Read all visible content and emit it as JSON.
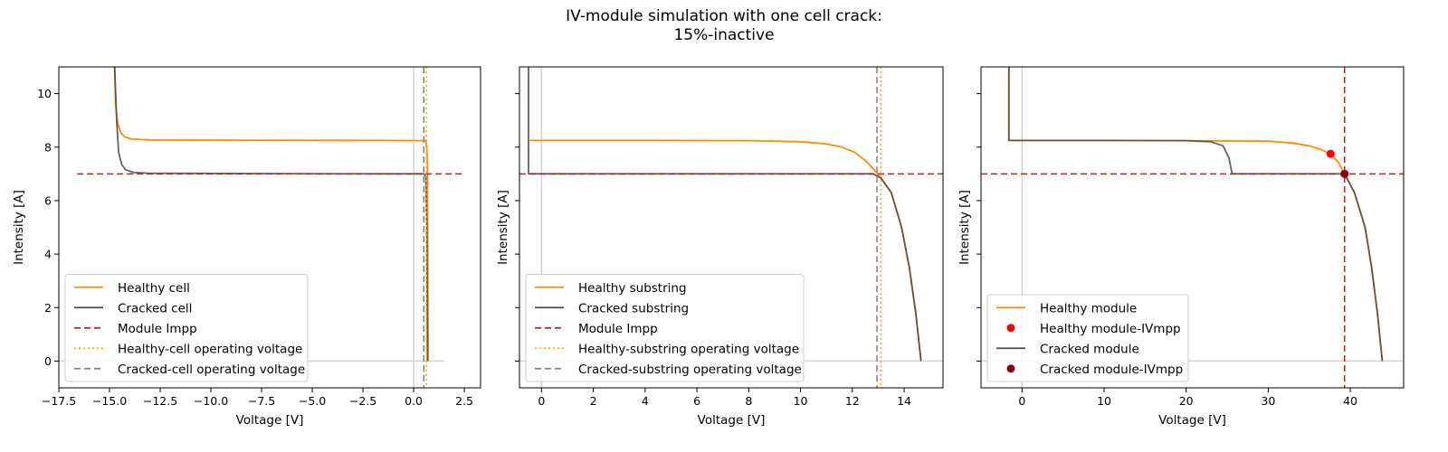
{
  "title_line1": "IV-module simulation with one cell crack:",
  "title_line2": "15%-inactive",
  "colors": {
    "healthy": "#ff8c00",
    "cracked": "#4a4a4a",
    "impp": "#b22222",
    "healthy_vop": "#ffa500",
    "cracked_vop": "#808080",
    "zero_line": "#d3d3d3",
    "healthy_mpp": "#ff0000",
    "cracked_mpp": "#8b0000",
    "mixed": "#6b5634"
  },
  "chart_data": [
    {
      "type": "line",
      "xlabel": "Voltage [V]",
      "ylabel": "Intensity [A]",
      "xlim": [
        -17.5,
        3.3
      ],
      "ylim": [
        -1,
        11
      ],
      "xticks": [
        -17.5,
        -15.0,
        -12.5,
        -10.0,
        -7.5,
        -5.0,
        -2.5,
        0.0,
        2.5
      ],
      "xtick_labels": [
        "−17.5",
        "−15.0",
        "−12.5",
        "−10.0",
        "−7.5",
        "−5.0",
        "−2.5",
        "0.0",
        "2.5"
      ],
      "yticks": [
        0,
        2,
        4,
        6,
        8,
        10
      ],
      "ytick_labels": [
        "0",
        "2",
        "4",
        "6",
        "8",
        "10"
      ],
      "series": [
        {
          "name": "Healthy cell",
          "style": "solid",
          "color": "#ff8c00",
          "points": [
            [
              -14.75,
              11.1
            ],
            [
              -14.7,
              9.6
            ],
            [
              -14.6,
              8.9
            ],
            [
              -14.45,
              8.55
            ],
            [
              -14.25,
              8.38
            ],
            [
              -13.9,
              8.3
            ],
            [
              -13.0,
              8.27
            ],
            [
              -8.0,
              8.26
            ],
            [
              -2.0,
              8.25
            ],
            [
              0.55,
              8.24
            ],
            [
              0.62,
              8.2
            ],
            [
              0.68,
              7.5
            ],
            [
              0.7,
              4.0
            ],
            [
              0.72,
              0.0
            ]
          ]
        },
        {
          "name": "Cracked cell",
          "style": "solid",
          "color": "#4a4a4a",
          "points": [
            [
              -14.75,
              11.1
            ],
            [
              -14.65,
              9.0
            ],
            [
              -14.55,
              7.8
            ],
            [
              -14.4,
              7.35
            ],
            [
              -14.2,
              7.15
            ],
            [
              -13.8,
              7.05
            ],
            [
              -13.0,
              7.02
            ],
            [
              -8.0,
              7.01
            ],
            [
              -2.0,
              7.0
            ],
            [
              0.5,
              7.0
            ],
            [
              0.6,
              6.9
            ],
            [
              0.65,
              5.0
            ],
            [
              0.68,
              0.0
            ]
          ]
        }
      ],
      "hlines": [
        {
          "name": "Module Impp",
          "y": 7.0,
          "style": "dashed",
          "color": "#b22222",
          "xmin": -16.6,
          "xmax": 2.4
        }
      ],
      "vlines": [
        {
          "name": "Healthy-cell operating voltage",
          "x": 0.63,
          "style": "dotted",
          "color": "#ffa500"
        },
        {
          "name": "Cracked-cell operating voltage",
          "x": 0.5,
          "style": "dashed",
          "color": "#808080"
        }
      ],
      "zero_lines": {
        "x": 0.0,
        "y": 0.0,
        "hline_xmax": 1.5
      },
      "legend_position": "lower-left",
      "legend": [
        {
          "label": "Healthy cell",
          "kind": "line",
          "style": "solid",
          "color": "#ff8c00"
        },
        {
          "label": "Cracked cell",
          "kind": "line",
          "style": "solid",
          "color": "#4a4a4a"
        },
        {
          "label": "Module Impp",
          "kind": "line",
          "style": "dashed",
          "color": "#b22222"
        },
        {
          "label": "Healthy-cell operating voltage",
          "kind": "line",
          "style": "dotted",
          "color": "#ffa500"
        },
        {
          "label": "Cracked-cell operating voltage",
          "kind": "line",
          "style": "dashed",
          "color": "#808080"
        }
      ]
    },
    {
      "type": "line",
      "xlabel": "Voltage [V]",
      "ylabel": "Intensity [A]",
      "xlim": [
        -0.85,
        15.5
      ],
      "ylim": [
        -1,
        11
      ],
      "xticks": [
        0,
        2,
        4,
        6,
        8,
        10,
        12,
        14
      ],
      "xtick_labels": [
        "0",
        "2",
        "4",
        "6",
        "8",
        "10",
        "12",
        "14"
      ],
      "yticks": [
        0,
        2,
        4,
        6,
        8,
        10
      ],
      "ytick_labels": [
        "",
        "",
        "",
        "",
        "",
        ""
      ],
      "series": [
        {
          "name": "Healthy substring",
          "style": "solid",
          "color": "#ff8c00",
          "points": [
            [
              -0.45,
              8.25
            ],
            [
              4.0,
              8.25
            ],
            [
              8.0,
              8.24
            ],
            [
              10.0,
              8.2
            ],
            [
              11.0,
              8.12
            ],
            [
              11.6,
              8.0
            ],
            [
              12.1,
              7.8
            ],
            [
              12.5,
              7.5
            ],
            [
              12.8,
              7.2
            ],
            [
              13.1,
              6.85
            ],
            [
              13.5,
              6.3
            ],
            [
              13.9,
              5.0
            ],
            [
              14.2,
              3.5
            ],
            [
              14.45,
              1.8
            ],
            [
              14.65,
              0.0
            ]
          ]
        },
        {
          "name": "Cracked substring",
          "style": "solid",
          "color": "#4a4a4a",
          "points": [
            [
              -0.5,
              11.1
            ],
            [
              -0.5,
              7.0
            ],
            [
              5.0,
              7.0
            ],
            [
              12.8,
              7.0
            ],
            [
              13.1,
              6.85
            ],
            [
              13.5,
              6.3
            ],
            [
              13.9,
              5.0
            ],
            [
              14.2,
              3.5
            ],
            [
              14.45,
              1.8
            ],
            [
              14.65,
              0.0
            ]
          ]
        }
      ],
      "hlines": [
        {
          "name": "Module Impp",
          "y": 7.0,
          "style": "dashed",
          "color": "#b22222"
        }
      ],
      "vlines": [
        {
          "name": "Healthy-substring operating voltage",
          "x": 13.1,
          "style": "dotted",
          "color": "#ffa500"
        },
        {
          "name": "Cracked-substring operating voltage",
          "x": 12.95,
          "style": "dashed",
          "color": "#808080"
        }
      ],
      "zero_lines": {
        "x": 0.0,
        "y": 0.0
      },
      "legend_position": "lower-left",
      "legend": [
        {
          "label": "Healthy substring",
          "kind": "line",
          "style": "solid",
          "color": "#ff8c00"
        },
        {
          "label": "Cracked substring",
          "kind": "line",
          "style": "solid",
          "color": "#4a4a4a"
        },
        {
          "label": "Module Impp",
          "kind": "line",
          "style": "dashed",
          "color": "#b22222"
        },
        {
          "label": "Healthy-substring operating voltage",
          "kind": "line",
          "style": "dotted",
          "color": "#ffa500"
        },
        {
          "label": "Cracked-substring operating voltage",
          "kind": "line",
          "style": "dashed",
          "color": "#808080"
        }
      ]
    },
    {
      "type": "line",
      "xlabel": "Voltage [V]",
      "ylabel": "Intensity [A]",
      "xlim": [
        -5,
        46.5
      ],
      "ylim": [
        -1,
        11
      ],
      "xticks": [
        0,
        10,
        20,
        30,
        40
      ],
      "xtick_labels": [
        "0",
        "10",
        "20",
        "30",
        "40"
      ],
      "yticks": [
        0,
        2,
        4,
        6,
        8,
        10
      ],
      "ytick_labels": [
        "",
        "",
        "",
        "",
        "",
        ""
      ],
      "series": [
        {
          "name": "Healthy module",
          "style": "solid",
          "color": "#ff8c00",
          "points": [
            [
              -1.6,
              11.1
            ],
            [
              -1.6,
              8.25
            ],
            [
              10.0,
              8.25
            ],
            [
              20.0,
              8.24
            ],
            [
              30.0,
              8.22
            ],
            [
              33.0,
              8.15
            ],
            [
              35.0,
              8.05
            ],
            [
              36.5,
              7.9
            ],
            [
              37.6,
              7.75
            ],
            [
              38.5,
              7.45
            ],
            [
              39.3,
              7.0
            ],
            [
              40.5,
              6.3
            ],
            [
              41.8,
              5.0
            ],
            [
              42.6,
              3.5
            ],
            [
              43.3,
              1.8
            ],
            [
              43.9,
              0.0
            ]
          ]
        },
        {
          "name": "Cracked module",
          "style": "solid",
          "color": "#4a4a4a",
          "points": [
            [
              -1.6,
              11.1
            ],
            [
              -1.6,
              8.25
            ],
            [
              10.0,
              8.25
            ],
            [
              20.0,
              8.24
            ],
            [
              23.0,
              8.2
            ],
            [
              24.5,
              8.05
            ],
            [
              25.2,
              7.6
            ],
            [
              25.6,
              7.0
            ],
            [
              30.0,
              7.0
            ],
            [
              39.3,
              7.0
            ],
            [
              40.5,
              6.3
            ],
            [
              41.8,
              5.0
            ],
            [
              42.6,
              3.5
            ],
            [
              43.3,
              1.8
            ],
            [
              43.9,
              0.0
            ]
          ]
        }
      ],
      "hlines": [
        {
          "name": "",
          "y": 7.0,
          "style": "dashed",
          "color": "#b22222"
        }
      ],
      "vlines": [
        {
          "name": "",
          "x": 39.3,
          "style": "dashed",
          "color": "#b22222",
          "full": true
        }
      ],
      "zero_lines": {
        "x": 0.0,
        "y": 0.0
      },
      "markers": [
        {
          "name": "Healthy module-IVmpp",
          "x": 37.6,
          "y": 7.75,
          "color": "#ff0000"
        },
        {
          "name": "Cracked module-IVmpp",
          "x": 39.3,
          "y": 7.0,
          "color": "#8b0000"
        }
      ],
      "legend_position": "lower-left",
      "legend": [
        {
          "label": "Healthy module",
          "kind": "line",
          "style": "solid",
          "color": "#ff8c00"
        },
        {
          "label": "Healthy module-IVmpp",
          "kind": "marker",
          "color": "#ff0000"
        },
        {
          "label": "Cracked module",
          "kind": "line",
          "style": "solid",
          "color": "#4a4a4a"
        },
        {
          "label": "Cracked module-IVmpp",
          "kind": "marker",
          "color": "#8b0000"
        }
      ]
    }
  ]
}
